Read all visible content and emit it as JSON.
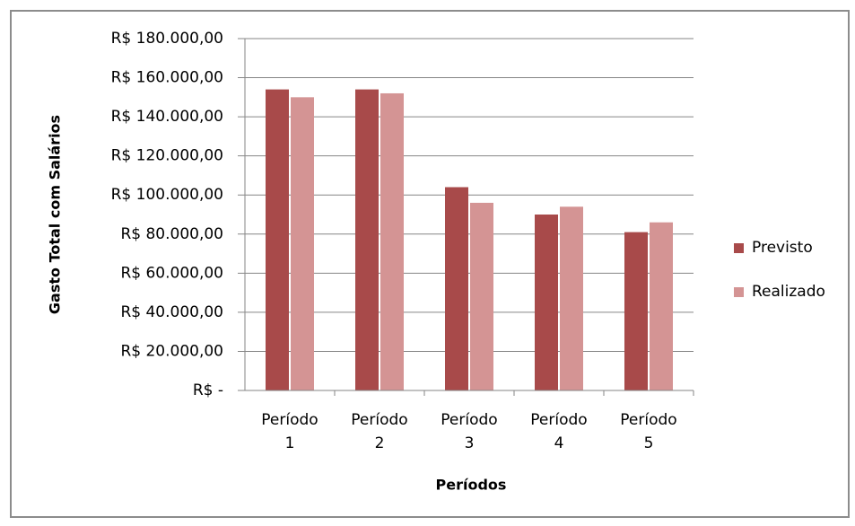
{
  "chart_data": {
    "type": "bar",
    "y_label": "Gasto Total com Salários",
    "x_label": "Períodos",
    "categories": [
      "Período 1",
      "Período 2",
      "Período 3",
      "Período 4",
      "Período 5"
    ],
    "series": [
      {
        "name": "Previsto",
        "color": "#a84a4a",
        "values": [
          154000,
          154000,
          104000,
          90000,
          81000
        ]
      },
      {
        "name": "Realizado",
        "color": "#d49494",
        "values": [
          150000,
          152000,
          96000,
          94000,
          86000
        ]
      }
    ],
    "ylim": [
      0,
      180000
    ],
    "yticks": [
      {
        "value": 0,
        "label": "R$ -"
      },
      {
        "value": 20000,
        "label": "R$ 20.000,00"
      },
      {
        "value": 40000,
        "label": "R$ 40.000,00"
      },
      {
        "value": 60000,
        "label": "R$ 60.000,00"
      },
      {
        "value": 80000,
        "label": "R$ 80.000,00"
      },
      {
        "value": 100000,
        "label": "R$ 100.000,00"
      },
      {
        "value": 120000,
        "label": "R$ 120.000,00"
      },
      {
        "value": 140000,
        "label": "R$ 140.000,00"
      },
      {
        "value": 160000,
        "label": "R$ 160.000,00"
      },
      {
        "value": 180000,
        "label": "R$ 180.000,00"
      }
    ],
    "grid": true,
    "legend": "right"
  }
}
